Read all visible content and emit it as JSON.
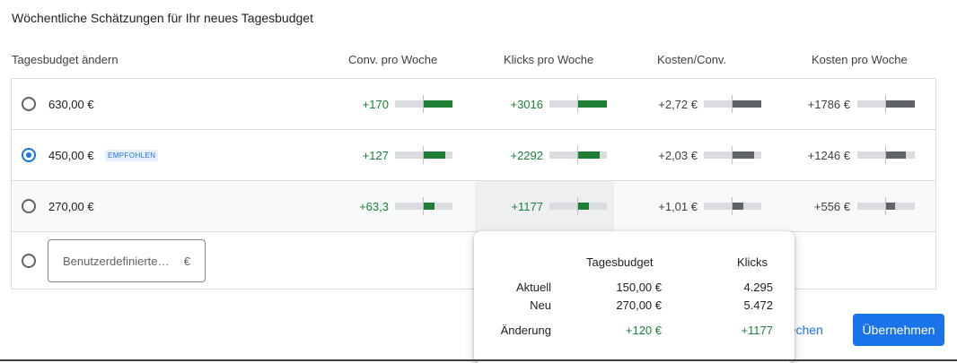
{
  "dialog": {
    "title": "Wöchentliche Schätzungen für Ihr neues Tagesbudget"
  },
  "columns": {
    "budget": "Tagesbudget ändern",
    "conv": "Conv. pro Woche",
    "clicks": "Klicks pro Woche",
    "cost_per_conv": "Kosten/Conv.",
    "cost_per_week": "Kosten pro Woche"
  },
  "rows": [
    {
      "amount": "630,00 €",
      "selected": false,
      "badge": "",
      "conv": "+170",
      "conv_bar": 1.0,
      "clicks": "+3016",
      "clicks_bar": 1.0,
      "cpc": "+2,72 €",
      "cpc_bar": 1.0,
      "cost": "+1786 €",
      "cost_bar": 1.0
    },
    {
      "amount": "450,00 €",
      "selected": true,
      "badge": "EMPFOHLEN",
      "conv": "+127",
      "conv_bar": 0.75,
      "clicks": "+2292",
      "clicks_bar": 0.75,
      "cpc": "+2,03 €",
      "cpc_bar": 0.75,
      "cost": "+1246 €",
      "cost_bar": 0.7
    },
    {
      "amount": "270,00 €",
      "selected": false,
      "badge": "",
      "conv": "+63,3",
      "conv_bar": 0.37,
      "clicks": "+1177",
      "clicks_bar": 0.39,
      "cpc": "+1,01 €",
      "cpc_bar": 0.37,
      "cost": "+556 €",
      "cost_bar": 0.31
    }
  ],
  "custom": {
    "placeholder": "Benutzerdefinierte…",
    "currency": "€"
  },
  "tooltip": {
    "col_budget": "Tagesbudget",
    "col_clicks": "Klicks",
    "current_label": "Aktuell",
    "current_budget": "150,00 €",
    "current_clicks": "4.295",
    "new_label": "Neu",
    "new_budget": "270,00 €",
    "new_clicks": "5.472",
    "change_label": "Änderung",
    "change_budget": "+120 €",
    "change_clicks": "+1177"
  },
  "actions": {
    "cancel": "rechen",
    "apply": "Übernehmen"
  }
}
